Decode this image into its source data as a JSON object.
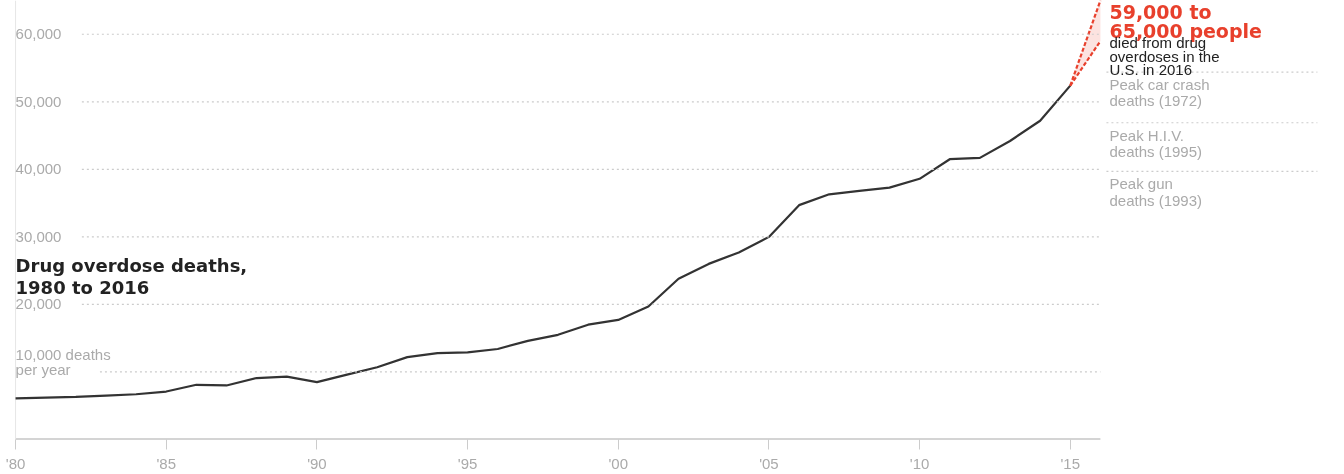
{
  "chart_data": {
    "type": "line",
    "title": "Drug overdose deaths, 1980 to 2016",
    "x": [
      1980,
      1981,
      1982,
      1983,
      1984,
      1985,
      1986,
      1987,
      1988,
      1989,
      1990,
      1991,
      1992,
      1993,
      1994,
      1995,
      1996,
      1997,
      1998,
      1999,
      2000,
      2001,
      2002,
      2003,
      2004,
      2005,
      2006,
      2007,
      2008,
      2009,
      2010,
      2011,
      2012,
      2013,
      2014,
      2015,
      2016
    ],
    "series": [
      {
        "color": "#333333",
        "values": [
          6100,
          6200,
          6300,
          6500,
          6700,
          7100,
          8100,
          8000,
          9100,
          9300,
          8500,
          9600,
          10700,
          12200,
          12800,
          12900,
          13400,
          14600,
          15500,
          17000,
          17700,
          19700,
          23800,
          26000,
          27700,
          30000,
          34700,
          36300,
          36800,
          37300,
          38600,
          41500,
          41700,
          44200,
          47200,
          52400,
          null
        ]
      },
      {
        "color": "#e8402c",
        "values": [
          null,
          null,
          null,
          null,
          null,
          null,
          null,
          null,
          null,
          null,
          null,
          null,
          null,
          null,
          null,
          null,
          null,
          null,
          null,
          null,
          null,
          null,
          null,
          null,
          null,
          null,
          null,
          null,
          null,
          null,
          null,
          null,
          null,
          null,
          null,
          52400,
          65000
        ],
        "line_style": "dashed",
        "lower": [
          null,
          null,
          null,
          null,
          null,
          null,
          null,
          null,
          null,
          null,
          null,
          null,
          null,
          null,
          null,
          null,
          null,
          null,
          null,
          null,
          null,
          null,
          null,
          null,
          null,
          null,
          null,
          null,
          null,
          null,
          null,
          null,
          null,
          null,
          null,
          52400,
          59000
        ],
        "upper": [
          null,
          null,
          null,
          null,
          null,
          null,
          null,
          null,
          null,
          null,
          null,
          null,
          null,
          null,
          null,
          null,
          null,
          null,
          null,
          null,
          null,
          null,
          null,
          null,
          null,
          null,
          null,
          null,
          null,
          null,
          null,
          null,
          null,
          null,
          null,
          52400,
          65000
        ]
      },
      {
        "color": "#e8402c",
        "values": [
          null,
          null,
          null,
          null,
          null,
          null,
          null,
          null,
          null,
          null,
          null,
          null,
          null,
          null,
          null,
          null,
          null,
          null,
          null,
          null,
          null,
          null,
          null,
          null,
          null,
          null,
          null,
          null,
          null,
          null,
          null,
          null,
          null,
          null,
          null,
          52400,
          59000
        ],
        "line_style": "dashed"
      }
    ],
    "xlim": [
      1980,
      2016
    ],
    "ylim": [
      0,
      65000
    ],
    "xticks": [
      {
        "value": 1980,
        "label": "'80"
      },
      {
        "value": 1985,
        "label": "'85"
      },
      {
        "value": 1990,
        "label": "'90"
      },
      {
        "value": 1995,
        "label": "'95"
      },
      {
        "value": 2000,
        "label": "'00"
      },
      {
        "value": 2005,
        "label": "'05"
      },
      {
        "value": 2010,
        "label": "'10"
      },
      {
        "value": 2015,
        "label": "'15"
      }
    ],
    "yticks": [
      {
        "value": 10000,
        "label": "10,000 deaths per year"
      },
      {
        "value": 20000,
        "label": "20,000"
      },
      {
        "value": 30000,
        "label": "30,000"
      },
      {
        "value": 40000,
        "label": "40,000"
      },
      {
        "value": 50000,
        "label": "50,000"
      },
      {
        "value": 60000,
        "label": "60,000"
      }
    ],
    "grid": "y",
    "ref_lines": [
      {
        "axis": "y",
        "value": 54400,
        "label": "Peak car crash deaths (1972)"
      },
      {
        "axis": "y",
        "value": 46900,
        "label": "Peak H.I.V. deaths (1995)"
      },
      {
        "axis": "y",
        "value": 39700,
        "label": "Peak gun deaths (1993)"
      }
    ],
    "annotations": [
      {
        "text": "59,000 to 65,000 people",
        "x": 2016,
        "y": 65000
      },
      "died from drug overdoses in the U.S. in 2016"
    ]
  }
}
